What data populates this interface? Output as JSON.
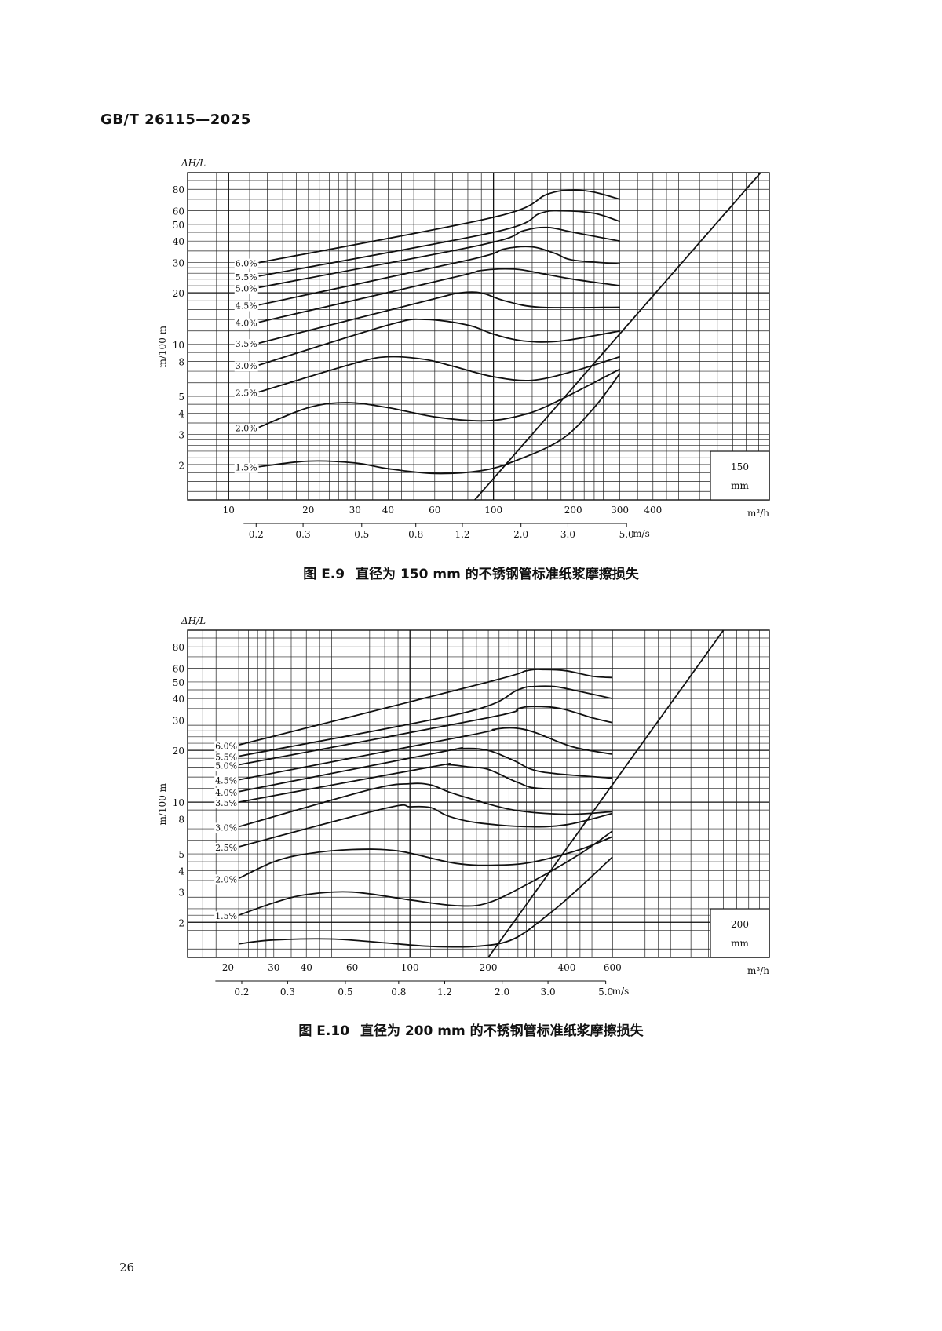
{
  "page": {
    "header": "GB/T 26115—2025",
    "number": "26"
  },
  "chart_data": [
    {
      "type": "line",
      "caption": {
        "label": "图 E.9",
        "text": "直径为 150 mm 的不锈钢管标准纸浆摩擦损失"
      },
      "diameter_label": [
        "150",
        "mm"
      ],
      "ylabel_top": "ΔH/L",
      "ylabel": "m/100 m",
      "xunit": "m³/h",
      "vunit": "m/s",
      "xlim": [
        7,
        1100
      ],
      "ylim": [
        1.25,
        100
      ],
      "log_x": true,
      "log_y": true,
      "yticks": [
        2,
        3,
        4,
        5,
        8,
        10,
        20,
        30,
        40,
        50,
        60,
        80
      ],
      "xticks": [
        10,
        20,
        30,
        40,
        60,
        100,
        200,
        300,
        400
      ],
      "velocity_ticks": [
        {
          "label": "0.2",
          "q": 12.7
        },
        {
          "label": "0.3",
          "q": 19.1
        },
        {
          "label": "0.5",
          "q": 31.8
        },
        {
          "label": "0.8",
          "q": 50.9
        },
        {
          "label": "1.2",
          "q": 76.3
        },
        {
          "label": "2.0",
          "q": 127
        },
        {
          "label": "3.0",
          "q": 191
        },
        {
          "label": "5.0",
          "q": 318
        }
      ],
      "velocity_axis_range": [
        12.7,
        318
      ],
      "series": [
        {
          "name": "6.0%",
          "x": [
            13,
            100,
            160,
            200,
            240,
            300
          ],
          "y": [
            30,
            55,
            75,
            79,
            77,
            70
          ]
        },
        {
          "name": "5.5%",
          "x": [
            13,
            100,
            150,
            180,
            240,
            300
          ],
          "y": [
            25,
            45,
            58,
            60,
            58,
            52
          ]
        },
        {
          "name": "5.0%",
          "x": [
            13,
            90,
            130,
            160,
            200,
            300
          ],
          "y": [
            21.5,
            38,
            46,
            48,
            45,
            40
          ]
        },
        {
          "name": "4.5%",
          "x": [
            13,
            80,
            110,
            140,
            170,
            200,
            300
          ],
          "y": [
            17,
            31,
            36,
            37,
            34,
            31,
            29.5
          ]
        },
        {
          "name": "4.0%",
          "x": [
            13,
            70,
            90,
            120,
            150,
            200,
            300
          ],
          "y": [
            13.5,
            24.5,
            27,
            27.5,
            26,
            24,
            22
          ]
        },
        {
          "name": "3.5%",
          "x": [
            13,
            60,
            75,
            90,
            110,
            150,
            300
          ],
          "y": [
            10.2,
            18.5,
            20,
            20,
            18,
            16.5,
            16.5
          ]
        },
        {
          "name": "3.0%",
          "x": [
            13,
            40,
            55,
            80,
            100,
            130,
            180,
            300
          ],
          "y": [
            7.6,
            13,
            14,
            13,
            11.5,
            10.5,
            10.5,
            12
          ]
        },
        {
          "name": "2.5%",
          "x": [
            13,
            30,
            40,
            55,
            70,
            100,
            140,
            200,
            300
          ],
          "y": [
            5.3,
            7.8,
            8.5,
            8.2,
            7.5,
            6.5,
            6.2,
            7,
            8.5
          ]
        },
        {
          "name": "2.0%",
          "x": [
            13,
            20,
            28,
            40,
            60,
            90,
            120,
            160,
            300
          ],
          "y": [
            3.3,
            4.3,
            4.6,
            4.3,
            3.8,
            3.6,
            3.8,
            4.4,
            7.2
          ]
        },
        {
          "name": "1.5%",
          "x": [
            13,
            20,
            30,
            40,
            60,
            90,
            120,
            180,
            240,
            300
          ],
          "y": [
            1.95,
            2.1,
            2.05,
            1.9,
            1.78,
            1.85,
            2.1,
            2.8,
            4.3,
            6.8
          ]
        }
      ],
      "boundary": {
        "x": [
          85,
          1020
        ],
        "y": [
          1.25,
          100
        ]
      }
    },
    {
      "type": "line",
      "caption": {
        "label": "图 E.10",
        "text": "直径为 200 mm 的不锈钢管标准纸浆摩擦损失"
      },
      "diameter_label": [
        "200",
        "mm"
      ],
      "ylabel_top": "ΔH/L",
      "ylabel": "m/100 m",
      "xunit": "m³/h",
      "vunit": "m/s",
      "xlim": [
        14,
        2400
      ],
      "ylim": [
        1.25,
        100
      ],
      "log_x": true,
      "log_y": true,
      "yticks": [
        2,
        3,
        4,
        5,
        8,
        10,
        20,
        30,
        40,
        50,
        60,
        80
      ],
      "xticks": [
        20,
        30,
        40,
        60,
        100,
        200,
        400,
        600
      ],
      "velocity_ticks": [
        {
          "label": "0.2",
          "q": 22.6
        },
        {
          "label": "0.3",
          "q": 33.9
        },
        {
          "label": "0.5",
          "q": 56.5
        },
        {
          "label": "0.8",
          "q": 90.5
        },
        {
          "label": "1.2",
          "q": 136
        },
        {
          "label": "2.0",
          "q": 226
        },
        {
          "label": "3.0",
          "q": 339
        },
        {
          "label": "5.0",
          "q": 565
        }
      ],
      "velocity_axis_range": [
        20,
        565
      ],
      "series": [
        {
          "name": "6.0%",
          "x": [
            22,
            200,
            280,
            330,
            400,
            500,
            600
          ],
          "y": [
            21.5,
            50,
            58,
            59,
            58,
            54,
            53
          ]
        },
        {
          "name": "5.5%",
          "x": [
            22,
            160,
            260,
            300,
            360,
            450,
            600
          ],
          "y": [
            18.5,
            33,
            45,
            47,
            47,
            44,
            40
          ]
        },
        {
          "name": "5.0%",
          "x": [
            22,
            200,
            260,
            300,
            380,
            500,
            600
          ],
          "y": [
            16.5,
            31,
            35,
            36,
            35,
            31,
            29
          ]
        },
        {
          "name": "4.5%",
          "x": [
            22,
            170,
            210,
            250,
            300,
            420,
            600
          ],
          "y": [
            13.5,
            24.5,
            26.5,
            27,
            25.5,
            21,
            19
          ]
        },
        {
          "name": "4.0%",
          "x": [
            22,
            130,
            160,
            200,
            250,
            320,
            600
          ],
          "y": [
            11.5,
            19.5,
            20.5,
            20,
            17.5,
            15,
            13.8
          ]
        },
        {
          "name": "3.5%",
          "x": [
            22,
            120,
            140,
            170,
            200,
            260,
            320,
            600
          ],
          "y": [
            10,
            16,
            16.5,
            16,
            15.5,
            13,
            12,
            12
          ]
        },
        {
          "name": "3.0%",
          "x": [
            22,
            70,
            100,
            120,
            140,
            170,
            250,
            400,
            600
          ],
          "y": [
            7.2,
            11.8,
            12.8,
            12.6,
            11.5,
            10.5,
            9,
            8.5,
            8.8
          ]
        },
        {
          "name": "2.5%",
          "x": [
            22,
            80,
            100,
            120,
            140,
            180,
            280,
            400,
            600
          ],
          "y": [
            5.5,
            9.2,
            9.4,
            9.3,
            8.3,
            7.6,
            7.2,
            7.4,
            8.6
          ]
        },
        {
          "name": "2.0%",
          "x": [
            22,
            30,
            40,
            60,
            90,
            150,
            220,
            300,
            450,
            600
          ],
          "y": [
            3.6,
            4.5,
            5,
            5.3,
            5.2,
            4.4,
            4.3,
            4.5,
            5.3,
            6.3
          ]
        },
        {
          "name": "1.5%",
          "x": [
            22,
            30,
            40,
            60,
            100,
            150,
            200,
            300,
            450,
            600
          ],
          "y": [
            2.2,
            2.6,
            2.9,
            3,
            2.7,
            2.5,
            2.6,
            3.5,
            5,
            6.8
          ]
        },
        {
          "name": "",
          "x": [
            22,
            30,
            50,
            80,
            120,
            180,
            250,
            350,
            450,
            600
          ],
          "y": [
            1.5,
            1.58,
            1.6,
            1.52,
            1.45,
            1.45,
            1.6,
            2.3,
            3.2,
            4.8
          ]
        }
      ],
      "boundary": {
        "x": [
          200,
          1600
        ],
        "y": [
          1.25,
          100
        ]
      }
    }
  ]
}
